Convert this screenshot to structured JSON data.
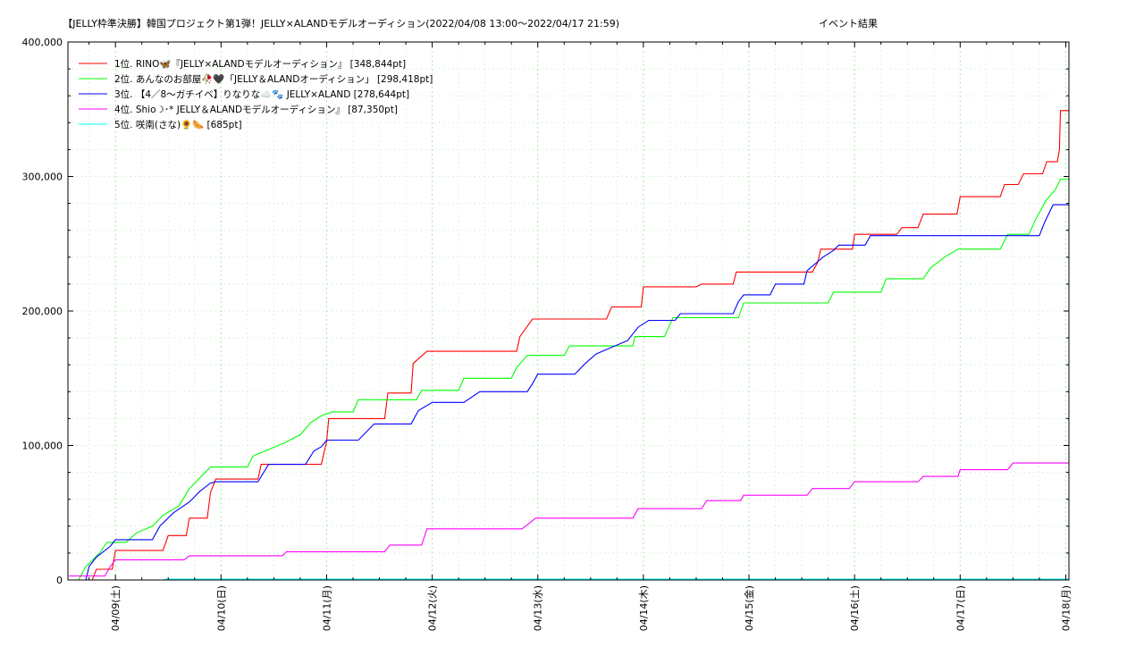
{
  "chart_data": {
    "type": "line",
    "title": "【JELLY枠準決勝】韓国プロジェクト第1弾！JELLY×ALANDモデルオーディション(2022/04/08 13:00〜2022/04/17 21:59)",
    "subtitle": "イベント結果",
    "xlabel": "",
    "ylabel": "",
    "x_unit": "days since 2022/04/08 00:00",
    "xlim": [
      0.55,
      10.03
    ],
    "ylim": [
      0,
      400000
    ],
    "y_ticks": [
      0,
      100000,
      200000,
      300000,
      400000
    ],
    "y_tick_labels": [
      "0",
      "100,000",
      "200,000",
      "300,000",
      "400,000"
    ],
    "x_tick_labels": [
      "04/09(土)",
      "04/10(日)",
      "04/11(月)",
      "04/12(火)",
      "04/13(水)",
      "04/14(木)",
      "04/15(金)",
      "04/16(土)",
      "04/17(日)",
      "04/18(月)"
    ],
    "x_ticks": [
      1,
      2,
      3,
      4,
      5,
      6,
      7,
      8,
      9,
      10
    ],
    "grid": true,
    "legend_position": "top-left",
    "series": [
      {
        "name": "1位. RINO🦋『JELLY×ALANDモデルオーディション』 [348,844pt]",
        "color": "#ff0000",
        "points": [
          [
            0.56,
            0
          ],
          [
            0.6,
            0
          ],
          [
            0.78,
            0
          ],
          [
            0.82,
            8000
          ],
          [
            0.97,
            8000
          ],
          [
            1.0,
            22000
          ],
          [
            1.45,
            22000
          ],
          [
            1.5,
            33000
          ],
          [
            1.67,
            33000
          ],
          [
            1.7,
            46000
          ],
          [
            1.87,
            46000
          ],
          [
            1.9,
            65000
          ],
          [
            1.95,
            75000
          ],
          [
            2.35,
            75000
          ],
          [
            2.38,
            86000
          ],
          [
            2.95,
            86000
          ],
          [
            3.0,
            103000
          ],
          [
            3.02,
            120000
          ],
          [
            3.55,
            120000
          ],
          [
            3.58,
            139000
          ],
          [
            3.8,
            139000
          ],
          [
            3.82,
            161000
          ],
          [
            3.95,
            170000
          ],
          [
            4.8,
            170000
          ],
          [
            4.83,
            181000
          ],
          [
            4.95,
            194000
          ],
          [
            5.65,
            194000
          ],
          [
            5.7,
            203000
          ],
          [
            5.98,
            203000
          ],
          [
            6.0,
            218000
          ],
          [
            6.5,
            218000
          ],
          [
            6.55,
            220000
          ],
          [
            6.85,
            220000
          ],
          [
            6.88,
            229000
          ],
          [
            7.6,
            229000
          ],
          [
            7.65,
            236000
          ],
          [
            7.68,
            246000
          ],
          [
            7.98,
            246000
          ],
          [
            8.0,
            257000
          ],
          [
            8.4,
            257000
          ],
          [
            8.45,
            262000
          ],
          [
            8.6,
            262000
          ],
          [
            8.65,
            272000
          ],
          [
            8.97,
            272000
          ],
          [
            9.0,
            285000
          ],
          [
            9.38,
            285000
          ],
          [
            9.42,
            294000
          ],
          [
            9.55,
            294000
          ],
          [
            9.6,
            302000
          ],
          [
            9.78,
            302000
          ],
          [
            9.82,
            311000
          ],
          [
            9.92,
            311000
          ],
          [
            9.94,
            320000
          ],
          [
            9.95,
            349000
          ],
          [
            10.03,
            349000
          ]
        ]
      },
      {
        "name": "2位. あんなのお部屋🥀🖤「JELLY＆ALANDオーディション」 [298,418pt]",
        "color": "#00ff00",
        "points": [
          [
            0.56,
            0
          ],
          [
            0.65,
            0
          ],
          [
            0.72,
            10000
          ],
          [
            0.85,
            20000
          ],
          [
            0.92,
            28000
          ],
          [
            1.1,
            28000
          ],
          [
            1.2,
            35000
          ],
          [
            1.35,
            40000
          ],
          [
            1.45,
            48000
          ],
          [
            1.6,
            55000
          ],
          [
            1.7,
            68000
          ],
          [
            1.8,
            76000
          ],
          [
            1.9,
            84000
          ],
          [
            2.25,
            84000
          ],
          [
            2.3,
            92000
          ],
          [
            2.45,
            97000
          ],
          [
            2.6,
            102000
          ],
          [
            2.75,
            108000
          ],
          [
            2.85,
            117000
          ],
          [
            2.95,
            122000
          ],
          [
            3.05,
            125000
          ],
          [
            3.25,
            125000
          ],
          [
            3.3,
            134000
          ],
          [
            3.85,
            134000
          ],
          [
            3.9,
            141000
          ],
          [
            4.25,
            141000
          ],
          [
            4.3,
            150000
          ],
          [
            4.75,
            150000
          ],
          [
            4.8,
            158000
          ],
          [
            4.9,
            167000
          ],
          [
            5.25,
            167000
          ],
          [
            5.3,
            174000
          ],
          [
            5.9,
            174000
          ],
          [
            5.92,
            181000
          ],
          [
            6.2,
            181000
          ],
          [
            6.28,
            195000
          ],
          [
            6.9,
            195000
          ],
          [
            6.95,
            206000
          ],
          [
            7.75,
            206000
          ],
          [
            7.8,
            214000
          ],
          [
            8.25,
            214000
          ],
          [
            8.3,
            224000
          ],
          [
            8.65,
            224000
          ],
          [
            8.72,
            232000
          ],
          [
            8.85,
            240000
          ],
          [
            8.98,
            246000
          ],
          [
            9.38,
            246000
          ],
          [
            9.45,
            257000
          ],
          [
            9.65,
            257000
          ],
          [
            9.72,
            269000
          ],
          [
            9.82,
            283000
          ],
          [
            9.9,
            290000
          ],
          [
            9.95,
            298000
          ],
          [
            10.03,
            298000
          ]
        ]
      },
      {
        "name": "3位. 【4／8〜ガチイベ】りなりな☁️🐾 JELLY×ALAND [278,644pt]",
        "color": "#0000ff",
        "points": [
          [
            0.56,
            0
          ],
          [
            0.72,
            0
          ],
          [
            0.75,
            10000
          ],
          [
            0.82,
            17000
          ],
          [
            0.95,
            25000
          ],
          [
            1.0,
            30000
          ],
          [
            1.35,
            30000
          ],
          [
            1.42,
            40000
          ],
          [
            1.55,
            50000
          ],
          [
            1.7,
            58000
          ],
          [
            1.8,
            66000
          ],
          [
            1.9,
            72000
          ],
          [
            1.95,
            73000
          ],
          [
            2.35,
            73000
          ],
          [
            2.45,
            86000
          ],
          [
            2.8,
            86000
          ],
          [
            2.88,
            96000
          ],
          [
            2.95,
            99000
          ],
          [
            3.0,
            104000
          ],
          [
            3.3,
            104000
          ],
          [
            3.45,
            116000
          ],
          [
            3.8,
            116000
          ],
          [
            3.87,
            126000
          ],
          [
            4.0,
            132000
          ],
          [
            4.3,
            132000
          ],
          [
            4.45,
            140000
          ],
          [
            4.9,
            140000
          ],
          [
            4.95,
            146000
          ],
          [
            5.0,
            153000
          ],
          [
            5.35,
            153000
          ],
          [
            5.45,
            161000
          ],
          [
            5.55,
            168000
          ],
          [
            5.7,
            173000
          ],
          [
            5.85,
            178000
          ],
          [
            5.95,
            188000
          ],
          [
            6.05,
            193000
          ],
          [
            6.3,
            193000
          ],
          [
            6.35,
            198000
          ],
          [
            6.85,
            198000
          ],
          [
            6.9,
            207000
          ],
          [
            6.95,
            212000
          ],
          [
            7.2,
            212000
          ],
          [
            7.25,
            220000
          ],
          [
            7.52,
            220000
          ],
          [
            7.55,
            230000
          ],
          [
            7.7,
            240000
          ],
          [
            7.8,
            245000
          ],
          [
            7.85,
            249000
          ],
          [
            8.1,
            249000
          ],
          [
            8.15,
            256000
          ],
          [
            9.75,
            256000
          ],
          [
            9.8,
            266000
          ],
          [
            9.88,
            279000
          ],
          [
            10.03,
            279000
          ]
        ]
      },
      {
        "name": "4位. Shio☽･* JELLY＆ALANDモデルオーディション』 [87,350pt]",
        "color": "#ff00ff",
        "points": [
          [
            0.56,
            3000
          ],
          [
            0.9,
            3000
          ],
          [
            0.95,
            10000
          ],
          [
            1.0,
            15000
          ],
          [
            1.65,
            15000
          ],
          [
            1.7,
            18000
          ],
          [
            2.58,
            18000
          ],
          [
            2.62,
            21000
          ],
          [
            3.55,
            21000
          ],
          [
            3.6,
            26000
          ],
          [
            3.9,
            26000
          ],
          [
            3.95,
            38000
          ],
          [
            4.85,
            38000
          ],
          [
            4.9,
            41000
          ],
          [
            4.98,
            46000
          ],
          [
            5.9,
            46000
          ],
          [
            5.95,
            53000
          ],
          [
            6.55,
            53000
          ],
          [
            6.6,
            59000
          ],
          [
            6.92,
            59000
          ],
          [
            6.95,
            63000
          ],
          [
            7.55,
            63000
          ],
          [
            7.6,
            68000
          ],
          [
            7.95,
            68000
          ],
          [
            8.0,
            73000
          ],
          [
            8.6,
            73000
          ],
          [
            8.65,
            77000
          ],
          [
            8.98,
            77000
          ],
          [
            9.0,
            82000
          ],
          [
            9.45,
            82000
          ],
          [
            9.5,
            87000
          ],
          [
            10.03,
            87000
          ]
        ]
      },
      {
        "name": "5位. 咲南(さな)🌻🌭 [685pt]",
        "color": "#00ffff",
        "points": [
          [
            0.56,
            0
          ],
          [
            1.45,
            0
          ],
          [
            1.48,
            685
          ],
          [
            10.03,
            685
          ]
        ]
      }
    ]
  }
}
